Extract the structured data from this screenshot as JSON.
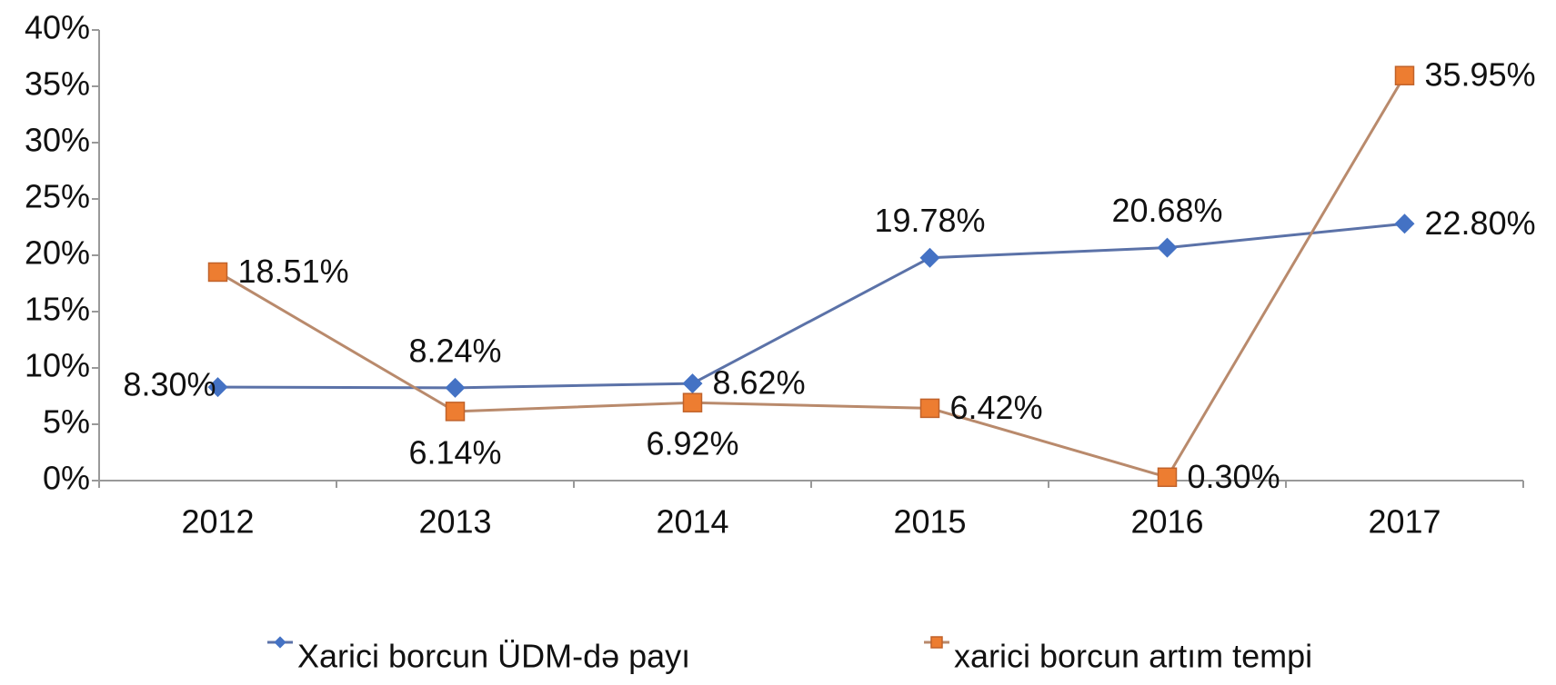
{
  "chart_data": {
    "type": "line",
    "categories": [
      "2012",
      "2013",
      "2014",
      "2015",
      "2016",
      "2017"
    ],
    "series": [
      {
        "name": "Xarici borcun ÜDM-də payı",
        "color": "#4472c4",
        "line_color": "#5b72a8",
        "marker": "diamond",
        "values": [
          8.3,
          8.24,
          8.62,
          19.78,
          20.68,
          22.8
        ],
        "value_labels": [
          "8.30%",
          "8.24%",
          "8.62%",
          "19.78%",
          "20.68%",
          "22.80%"
        ]
      },
      {
        "name": "xarici borcun artım tempi",
        "color": "#ed7d31",
        "line_color": "#b98a6c",
        "marker": "square",
        "values": [
          18.51,
          6.14,
          6.92,
          6.42,
          0.3,
          35.95
        ],
        "value_labels": [
          "18.51%",
          "6.14%",
          "6.92%",
          "6.42%",
          "0.30%",
          "35.95%"
        ]
      }
    ],
    "ylim": [
      0,
      40
    ],
    "yticks": [
      {
        "value": 0,
        "label": "0%"
      },
      {
        "value": 5,
        "label": "5%"
      },
      {
        "value": 10,
        "label": "10%"
      },
      {
        "value": 15,
        "label": "15%"
      },
      {
        "value": 20,
        "label": "20%"
      },
      {
        "value": 25,
        "label": "25%"
      },
      {
        "value": 30,
        "label": "30%"
      },
      {
        "value": 35,
        "label": "35%"
      },
      {
        "value": 40,
        "label": "40%"
      }
    ],
    "grid": false,
    "legend": "bottom"
  }
}
